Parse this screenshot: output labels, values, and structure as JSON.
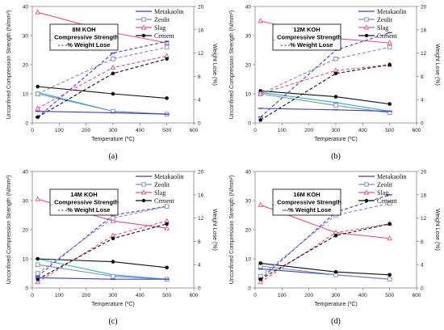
{
  "colors": {
    "Metakaolin": "#3b3bd6",
    "Zeolit": "#7b8fb3",
    "Slag": "#e8508a",
    "Cement": "#111111",
    "Metakaolin_var": "#25b3cf"
  },
  "chart_data": [
    {
      "type": "line",
      "panel_label": "(a)",
      "title_lines": [
        "8M KOH",
        "_ Compressive Strength",
        "- - -% Weight Lose"
      ],
      "xlabel": "Temperature (ºC)",
      "ylabel": "Unconfined Compression Strength (N/mm²)",
      "y2label": "Weight Lose (%)",
      "xlim": [
        0,
        600
      ],
      "ylim": [
        0,
        40
      ],
      "y2lim": [
        0,
        20
      ],
      "xticks": [
        "0",
        "100",
        "200",
        "300",
        "400",
        "500",
        "600"
      ],
      "yticks": [
        "0",
        "10",
        "20",
        "30",
        "40"
      ],
      "y2ticks": [
        "0",
        "4",
        "8",
        "12",
        "16",
        "20"
      ],
      "x": [
        20,
        300,
        500
      ],
      "legend": [
        "Metakaolin",
        "Zeolit",
        "Slag",
        "Cement"
      ],
      "legend_position": "top-right",
      "series": [
        {
          "name": "Metakaolin",
          "axis": "strength",
          "values": [
            10.5,
            4.0,
            3.0
          ],
          "color_key": "Metakaolin_var",
          "marker": "dash"
        },
        {
          "name": "Zeolit",
          "axis": "strength",
          "values": [
            10.0,
            4.0,
            3.0
          ],
          "color_key": "Zeolit",
          "marker": "square"
        },
        {
          "name": "Slag",
          "axis": "strength",
          "values": [
            38.0,
            31.0,
            27.5
          ],
          "color_key": "Slag",
          "marker": "triangle"
        },
        {
          "name": "Cement",
          "axis": "strength",
          "values": [
            12.5,
            10.0,
            8.5
          ],
          "color_key": "Cement",
          "marker": "circle"
        },
        {
          "name": "Metakaolin",
          "axis": "weight",
          "values": [
            1.0,
            12.0,
            14.0
          ],
          "color_key": "Metakaolin",
          "marker": "dash",
          "dashed": true
        },
        {
          "name": "Zeolit",
          "axis": "weight",
          "values": [
            5.0,
            11.0,
            13.0
          ],
          "color_key": "Zeolit",
          "marker": "square",
          "dashed": true
        },
        {
          "name": "Slag",
          "axis": "weight",
          "values": [
            2.5,
            9.5,
            11.5
          ],
          "color_key": "Slag",
          "marker": "triangle",
          "dashed": true
        },
        {
          "name": "Cement",
          "axis": "weight",
          "values": [
            1.0,
            8.5,
            11.0
          ],
          "color_key": "Cement",
          "marker": "circle",
          "dashed": true
        },
        {
          "name": "Metakaolin",
          "axis": "strength",
          "values": [
            4.0,
            3.5,
            3.0
          ],
          "color_key": "Metakaolin",
          "marker": "dash"
        }
      ]
    },
    {
      "type": "line",
      "panel_label": "(b)",
      "title_lines": [
        "12M KOH",
        "_ Compressive Strength",
        "- - -% Weight Lose"
      ],
      "xlabel": "Temperature (ºC)",
      "ylabel": "Unconfined Compression Strength (N/mm²)",
      "y2label": "Weight Lose (%)",
      "xlim": [
        0,
        600
      ],
      "ylim": [
        0,
        40
      ],
      "y2lim": [
        0,
        20
      ],
      "xticks": [
        "0",
        "100",
        "200",
        "300",
        "400",
        "500",
        "600"
      ],
      "yticks": [
        "0",
        "10",
        "20",
        "30",
        "40"
      ],
      "y2ticks": [
        "0",
        "4",
        "8",
        "12",
        "16",
        "20"
      ],
      "x": [
        20,
        300,
        500
      ],
      "legend": [
        "Metakaolin",
        "Zeolit",
        "Slag",
        "Cement"
      ],
      "legend_position": "top-right",
      "series": [
        {
          "name": "Metakaolin",
          "axis": "strength",
          "values": [
            10.5,
            7.0,
            4.0
          ],
          "color_key": "Metakaolin_var",
          "marker": "dash"
        },
        {
          "name": "Zeolit",
          "axis": "strength",
          "values": [
            10.0,
            6.0,
            3.5
          ],
          "color_key": "Zeolit",
          "marker": "square"
        },
        {
          "name": "Slag",
          "axis": "strength",
          "values": [
            35.0,
            29.0,
            27.5
          ],
          "color_key": "Slag",
          "marker": "triangle"
        },
        {
          "name": "Cement",
          "axis": "strength",
          "values": [
            11.0,
            9.0,
            6.5
          ],
          "color_key": "Cement",
          "marker": "circle"
        },
        {
          "name": "Metakaolin",
          "axis": "weight",
          "values": [
            1.0,
            12.5,
            15.5
          ],
          "color_key": "Metakaolin",
          "marker": "dash",
          "dashed": true
        },
        {
          "name": "Zeolit",
          "axis": "weight",
          "values": [
            5.0,
            11.0,
            13.0
          ],
          "color_key": "Zeolit",
          "marker": "square",
          "dashed": true
        },
        {
          "name": "Slag",
          "axis": "weight",
          "values": [
            5.0,
            9.0,
            10.0
          ],
          "color_key": "Slag",
          "marker": "triangle",
          "dashed": true
        },
        {
          "name": "Cement",
          "axis": "weight",
          "values": [
            0.5,
            8.5,
            10.0
          ],
          "color_key": "Cement",
          "marker": "circle",
          "dashed": true
        },
        {
          "name": "Metakaolin",
          "axis": "strength",
          "values": [
            5.0,
            4.5,
            4.0
          ],
          "color_key": "Metakaolin",
          "marker": "dash"
        }
      ]
    },
    {
      "type": "line",
      "panel_label": "(c)",
      "title_lines": [
        "14M KOH",
        "_ Compressive Strength",
        "- - -% Weight Lose"
      ],
      "xlabel": "Temperature (ºC)",
      "ylabel": "Unconfined Compression Strength (N/mm²)",
      "y2label": "Weight Lose (%)",
      "xlim": [
        0,
        600
      ],
      "ylim": [
        0,
        40
      ],
      "y2lim": [
        0,
        20
      ],
      "xticks": [
        "0",
        "100",
        "200",
        "300",
        "400",
        "500",
        "600"
      ],
      "yticks": [
        "0",
        "10",
        "20",
        "30",
        "40"
      ],
      "y2ticks": [
        "0",
        "4",
        "8",
        "12",
        "16",
        "20"
      ],
      "x": [
        20,
        300,
        500
      ],
      "legend": [
        "Metakaolin",
        "Zeolit",
        "Slag",
        "Cement"
      ],
      "legend_position": "top-right",
      "series": [
        {
          "name": "Metakaolin",
          "axis": "strength",
          "values": [
            10.0,
            4.5,
            3.0
          ],
          "color_key": "Metakaolin_var",
          "marker": "dash"
        },
        {
          "name": "Zeolit",
          "axis": "strength",
          "values": [
            8.0,
            4.0,
            3.0
          ],
          "color_key": "Zeolit",
          "marker": "square"
        },
        {
          "name": "Slag",
          "axis": "strength",
          "values": [
            30.5,
            23.0,
            20.5
          ],
          "color_key": "Slag",
          "marker": "triangle"
        },
        {
          "name": "Cement",
          "axis": "strength",
          "values": [
            10.0,
            9.0,
            7.0
          ],
          "color_key": "Cement",
          "marker": "circle"
        },
        {
          "name": "Metakaolin",
          "axis": "weight",
          "values": [
            2.0,
            12.5,
            14.0
          ],
          "color_key": "Metakaolin",
          "marker": "dash",
          "dashed": true
        },
        {
          "name": "Zeolit",
          "axis": "weight",
          "values": [
            2.5,
            12.0,
            14.0
          ],
          "color_key": "Zeolit",
          "marker": "square",
          "dashed": true
        },
        {
          "name": "Slag",
          "axis": "weight",
          "values": [
            1.0,
            9.0,
            11.5
          ],
          "color_key": "Slag",
          "marker": "triangle",
          "dashed": true
        },
        {
          "name": "Cement",
          "axis": "weight",
          "values": [
            1.5,
            8.5,
            11.0
          ],
          "color_key": "Cement",
          "marker": "circle",
          "dashed": true
        },
        {
          "name": "Metakaolin",
          "axis": "strength",
          "values": [
            3.5,
            3.0,
            3.0
          ],
          "color_key": "Metakaolin",
          "marker": "dash"
        }
      ]
    },
    {
      "type": "line",
      "panel_label": "(d)",
      "title_lines": [
        "16M KOH",
        "_ Compressive Strength",
        "---% Weight Lose"
      ],
      "xlabel": "Temperature (ºC)",
      "ylabel": "Unconfined Compression Strength (N/mm²)",
      "y2label": "Weight Lose (%)",
      "xlim": [
        0,
        600
      ],
      "ylim": [
        0,
        40
      ],
      "y2lim": [
        0,
        20
      ],
      "xticks": [
        "0",
        "100",
        "200",
        "300",
        "400",
        "500",
        "600"
      ],
      "yticks": [
        "0",
        "10",
        "20",
        "30",
        "40"
      ],
      "y2ticks": [
        "0",
        "4",
        "8",
        "12",
        "16",
        "20"
      ],
      "x": [
        20,
        300,
        500
      ],
      "legend": [
        "Metakaolin",
        "Zeolit",
        "Slag",
        "Cement"
      ],
      "legend_position": "top-right",
      "series": [
        {
          "name": "Metakaolin",
          "axis": "strength",
          "values": [
            6.5,
            4.5,
            3.0
          ],
          "color_key": "Metakaolin",
          "marker": "dash"
        },
        {
          "name": "Zeolit",
          "axis": "strength",
          "values": [
            7.5,
            4.5,
            3.0
          ],
          "color_key": "Zeolit",
          "marker": "square"
        },
        {
          "name": "Slag",
          "axis": "strength",
          "values": [
            28.5,
            19.0,
            17.0
          ],
          "color_key": "Slag",
          "marker": "triangle"
        },
        {
          "name": "Cement",
          "axis": "strength",
          "values": [
            8.5,
            5.5,
            4.5
          ],
          "color_key": "Cement",
          "marker": "circle"
        },
        {
          "name": "Metakaolin",
          "axis": "weight",
          "values": [
            1.5,
            13.0,
            16.0
          ],
          "color_key": "Metakaolin",
          "marker": "dash",
          "dashed": true
        },
        {
          "name": "Zeolit",
          "axis": "weight",
          "values": [
            2.0,
            12.5,
            14.5
          ],
          "color_key": "Zeolit",
          "marker": "square",
          "dashed": true
        },
        {
          "name": "Slag",
          "axis": "weight",
          "values": [
            1.0,
            9.5,
            11.0
          ],
          "color_key": "Slag",
          "marker": "triangle",
          "dashed": true
        },
        {
          "name": "Cement",
          "axis": "weight",
          "values": [
            1.5,
            9.0,
            11.0
          ],
          "color_key": "Cement",
          "marker": "circle",
          "dashed": true
        }
      ]
    }
  ]
}
